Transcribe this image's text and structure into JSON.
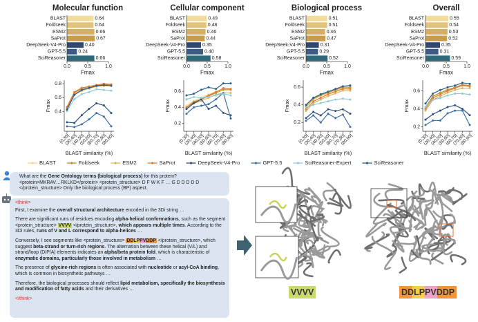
{
  "chart_data": [
    {
      "type": "bar",
      "title": "Molecular function",
      "categories": [
        "BLAST",
        "Foldseek",
        "ESM2",
        "SaProt",
        "DeepSeek-V4-Pro",
        "GPT-5.5",
        "SciReasoner"
      ],
      "values": [
        0.64,
        0.64,
        0.66,
        0.67,
        0.4,
        0.24,
        0.66
      ],
      "value_labels": [
        "0.64",
        "0.64",
        "0.66",
        "0.67",
        "0.40",
        "0.24",
        "0.66"
      ],
      "colors": [
        "#f0dc9c",
        "#e0c27a",
        "#d4ae63",
        "#c89c4c",
        "#33486f",
        "#3b5a86",
        "#2f6878"
      ],
      "xlim": [
        0,
        1
      ],
      "xticks": [
        {
          "value": 0,
          "label": "0.0"
        },
        {
          "value": 0.5,
          "label": "0.5"
        },
        {
          "value": 1,
          "label": "1.0"
        }
      ],
      "xlabel": "Fmax"
    },
    {
      "type": "bar",
      "title": "Cellular component",
      "categories": [
        "BLAST",
        "Foldseek",
        "ESM2",
        "SaProt",
        "DeepSeek-V4-Pro",
        "GPT-5.5",
        "SciReasoner"
      ],
      "values": [
        0.49,
        0.48,
        0.46,
        0.44,
        0.35,
        0.4,
        0.58
      ],
      "value_labels": [
        "0.49",
        "0.48",
        "0.46",
        "0.44",
        "0.35",
        "0.40",
        "0.58"
      ],
      "colors": [
        "#f0dc9c",
        "#e0c27a",
        "#d4ae63",
        "#c89c4c",
        "#33486f",
        "#3b5a86",
        "#2f6878"
      ],
      "xlim": [
        0,
        1
      ],
      "xticks": [
        {
          "value": 0,
          "label": "0.0"
        },
        {
          "value": 0.5,
          "label": "0.5"
        },
        {
          "value": 1,
          "label": "1.0"
        }
      ],
      "xlabel": "Fmax"
    },
    {
      "type": "bar",
      "title": "Biological process",
      "categories": [
        "BLAST",
        "Foldseek",
        "ESM2",
        "SaProt",
        "DeepSeek-V4-Pro",
        "GPT-5.5",
        "SciReasoner"
      ],
      "values": [
        0.51,
        0.51,
        0.46,
        0.47,
        0.31,
        0.29,
        0.52
      ],
      "value_labels": [
        "0.51",
        "0.51",
        "0.46",
        "0.47",
        "0.31",
        "0.29",
        "0.52"
      ],
      "colors": [
        "#f0dc9c",
        "#e0c27a",
        "#d4ae63",
        "#c89c4c",
        "#33486f",
        "#3b5a86",
        "#2f6878"
      ],
      "xlim": [
        0,
        1
      ],
      "xticks": [
        {
          "value": 0,
          "label": "0.0"
        },
        {
          "value": 0.5,
          "label": "0.5"
        },
        {
          "value": 1,
          "label": "1.0"
        }
      ],
      "xlabel": "Fmax"
    },
    {
      "type": "bar",
      "title": "Overall",
      "categories": [
        "BLAST",
        "Foldseek",
        "ESM2",
        "SaProt",
        "DeepSeek-V4-Pro",
        "GPT-5.5",
        "SciReasoner"
      ],
      "values": [
        0.55,
        0.54,
        0.53,
        0.52,
        0.35,
        0.31,
        0.59
      ],
      "value_labels": [
        "0.55",
        "0.54",
        "0.53",
        "0.52",
        "0.35",
        "0.31",
        "0.59"
      ],
      "colors": [
        "#f0dc9c",
        "#e0c27a",
        "#d4ae63",
        "#c89c4c",
        "#33486f",
        "#3b5a86",
        "#2f6878"
      ],
      "xlim": [
        0,
        1
      ],
      "xticks": [
        {
          "value": 0,
          "label": "0.0"
        },
        {
          "value": 0.5,
          "label": "0.5"
        },
        {
          "value": 1,
          "label": "1.0"
        }
      ],
      "xlabel": "Fmax"
    },
    {
      "type": "line",
      "categories": [
        "(0,30]",
        "(30,40]",
        "(40,50]",
        "(50,60]",
        "(60,70]",
        "(70,80]",
        "(80,90]"
      ],
      "xlabel": "BLAST similarity (%)",
      "ylabel": "Fmax",
      "ylim": [
        0.12,
        0.85
      ],
      "yticks": [
        0.4,
        0.6,
        0.8
      ],
      "series": [
        {
          "name": "BLAST",
          "color": "#f0d890",
          "values": [
            0.45,
            0.66,
            0.72,
            0.75,
            0.77,
            0.78,
            0.77
          ]
        },
        {
          "name": "Foldseek",
          "color": "#b98f3a",
          "values": [
            0.47,
            0.68,
            0.74,
            0.76,
            0.78,
            0.79,
            0.78
          ]
        },
        {
          "name": "ESM2",
          "color": "#d8b45c",
          "values": [
            0.44,
            0.64,
            0.7,
            0.73,
            0.76,
            0.77,
            0.77
          ]
        },
        {
          "name": "SaProt",
          "color": "#e07b39",
          "values": [
            0.46,
            0.67,
            0.73,
            0.76,
            0.78,
            0.8,
            0.79
          ]
        },
        {
          "name": "DeepSeek-V4-Pro",
          "color": "#2e4f80",
          "values": [
            0.25,
            0.24,
            0.35,
            0.44,
            0.52,
            0.49,
            0.38
          ]
        },
        {
          "name": "GPT-5.5",
          "color": "#3c6ea8",
          "values": [
            0.19,
            0.18,
            0.22,
            0.29,
            0.38,
            0.33,
            0.19
          ]
        },
        {
          "name": "SciReasoner-Expert",
          "color": "#8ccbd5",
          "values": [
            0.41,
            0.58,
            0.65,
            0.68,
            0.72,
            0.71,
            0.7
          ]
        },
        {
          "name": "SciReasoner",
          "color": "#2b5d84",
          "values": [
            0.43,
            0.64,
            0.71,
            0.74,
            0.77,
            0.78,
            0.77
          ]
        }
      ]
    },
    {
      "type": "line",
      "categories": [
        "(0,30]",
        "(30,40]",
        "(40,50]",
        "(50,60]",
        "(60,70]",
        "(70,80]",
        "(80,90]"
      ],
      "xlabel": "BLAST similarity (%)",
      "ylabel": "Fmax",
      "ylim": [
        0.1,
        0.74
      ],
      "yticks": [
        0.2,
        0.4,
        0.6
      ],
      "series": [
        {
          "color": "#f0d890",
          "values": [
            0.42,
            0.48,
            0.52,
            0.56,
            0.6,
            0.63,
            0.63
          ]
        },
        {
          "color": "#b98f3a",
          "values": [
            0.4,
            0.47,
            0.5,
            0.54,
            0.58,
            0.62,
            0.62
          ]
        },
        {
          "color": "#d8b45c",
          "values": [
            0.38,
            0.45,
            0.48,
            0.52,
            0.56,
            0.58,
            0.58
          ]
        },
        {
          "color": "#e07b39",
          "values": [
            0.4,
            0.46,
            0.5,
            0.55,
            0.59,
            0.64,
            0.63
          ]
        },
        {
          "color": "#2e4f80",
          "values": [
            0.38,
            0.45,
            0.5,
            0.38,
            0.42,
            0.33,
            0.3
          ]
        },
        {
          "color": "#3c6ea8",
          "values": [
            0.32,
            0.4,
            0.42,
            0.44,
            0.5,
            0.58,
            0.26
          ]
        },
        {
          "color": "#8ccbd5",
          "values": [
            0.5,
            0.53,
            0.52,
            0.53,
            0.55,
            0.57,
            0.55
          ]
        },
        {
          "color": "#2b5d84",
          "values": [
            0.55,
            0.57,
            0.62,
            0.65,
            0.63,
            0.7,
            0.7
          ]
        }
      ]
    },
    {
      "type": "line",
      "categories": [
        "(0,30]",
        "(30,40]",
        "(40,50]",
        "(50,60]",
        "(60,70]",
        "(70,80]",
        "(80,90]"
      ],
      "xlabel": "BLAST similarity (%)",
      "ylabel": "Fmax",
      "ylim": [
        0.1,
        0.68
      ],
      "yticks": [
        0.2,
        0.4,
        0.6
      ],
      "series": [
        {
          "color": "#f0d890",
          "values": [
            0.38,
            0.46,
            0.5,
            0.53,
            0.56,
            0.59,
            0.59
          ]
        },
        {
          "color": "#b98f3a",
          "values": [
            0.38,
            0.47,
            0.51,
            0.54,
            0.57,
            0.6,
            0.6
          ]
        },
        {
          "color": "#d8b45c",
          "values": [
            0.33,
            0.42,
            0.46,
            0.5,
            0.53,
            0.56,
            0.56
          ]
        },
        {
          "color": "#e07b39",
          "values": [
            0.35,
            0.44,
            0.48,
            0.52,
            0.55,
            0.58,
            0.58
          ]
        },
        {
          "color": "#2e4f80",
          "values": [
            0.25,
            0.32,
            0.28,
            0.35,
            0.33,
            0.35,
            0.3
          ]
        },
        {
          "color": "#3c6ea8",
          "values": [
            0.22,
            0.28,
            0.2,
            0.3,
            0.25,
            0.29,
            0.15
          ]
        },
        {
          "color": "#8ccbd5",
          "values": [
            0.37,
            0.4,
            0.42,
            0.44,
            0.46,
            0.47,
            0.46
          ]
        },
        {
          "color": "#2b5d84",
          "values": [
            0.4,
            0.48,
            0.52,
            0.55,
            0.58,
            0.61,
            0.62
          ]
        }
      ]
    },
    {
      "type": "line",
      "categories": [
        "(0,30]",
        "(30,40]",
        "(40,50]",
        "(50,60]",
        "(60,70]",
        "(70,80]",
        "(80,90]"
      ],
      "xlabel": "BLAST similarity (%)",
      "ylabel": "Fmax",
      "ylim": [
        0.15,
        0.72
      ],
      "yticks": [
        0.2,
        0.4,
        0.6
      ],
      "series": [
        {
          "color": "#f0d890",
          "values": [
            0.42,
            0.53,
            0.58,
            0.62,
            0.64,
            0.66,
            0.66
          ]
        },
        {
          "color": "#b98f3a",
          "values": [
            0.42,
            0.54,
            0.58,
            0.61,
            0.64,
            0.67,
            0.66
          ]
        },
        {
          "color": "#d8b45c",
          "values": [
            0.38,
            0.5,
            0.54,
            0.58,
            0.61,
            0.63,
            0.63
          ]
        },
        {
          "color": "#e07b39",
          "values": [
            0.4,
            0.52,
            0.56,
            0.6,
            0.63,
            0.66,
            0.65
          ]
        },
        {
          "color": "#2e4f80",
          "values": [
            0.28,
            0.34,
            0.38,
            0.42,
            0.44,
            0.4,
            0.33
          ]
        },
        {
          "color": "#3c6ea8",
          "values": [
            0.22,
            0.27,
            0.27,
            0.35,
            0.38,
            0.38,
            0.22
          ]
        },
        {
          "color": "#8ccbd5",
          "values": [
            0.42,
            0.5,
            0.52,
            0.55,
            0.57,
            0.57,
            0.56
          ]
        },
        {
          "color": "#2b5d84",
          "values": [
            0.46,
            0.57,
            0.61,
            0.64,
            0.66,
            0.69,
            0.68
          ]
        }
      ]
    }
  ],
  "dialogue": {
    "question": [
      "What are the ",
      "Gene Ontology terms (biological process)",
      " for this protein?",
      "<protein>MKRAV…RKLKD</protein> <protein_structure> D F W K F … G D D D D D </protein_structure> Only the biological process (BP) aspect."
    ],
    "open_tag": "<think>",
    "paragraphs": [
      [
        "First, I examine the ",
        "overall structural architecture",
        " encoded in the 3Di string …"
      ],
      [
        "There are significant runs of residues encoding ",
        "alpha-helical conformations",
        ", such as the segment <protein_structure> ",
        "VVVV",
        " </protein_structure>, ",
        "which appears multiple times",
        ". According to the 3Di rules, ",
        "runs of V and L correspond to alpha-helices",
        " …"
      ],
      [
        "Conversely, I see segments like <protein_structure> ",
        "DDLPPVDDP",
        " </protein_structure>, which suggest ",
        "beta-strand or turn-rich regions",
        ". The alternation between these helical (V/L) and strand/loop (D/P/A) elements indicates an ",
        "alpha/beta protein fold",
        ", which is characteristic of ",
        "enzymatic domains, particularly those involved in metabolism",
        " …"
      ],
      [
        "The presence of ",
        "glycine-rich regions",
        " is often associated with ",
        "nucleotide",
        " or ",
        "acyl-CoA binding",
        ", which is common in biosynthetic pathways …"
      ],
      [
        "Therefore, the biological processes should reflect ",
        "lipid metabolism, specifically the biosynthesis and modification of fatty acids",
        " and their derivatives …"
      ]
    ],
    "close_tag": "</think>"
  },
  "structure_labels": [
    "VVVV",
    "DDLPPVDDP"
  ]
}
